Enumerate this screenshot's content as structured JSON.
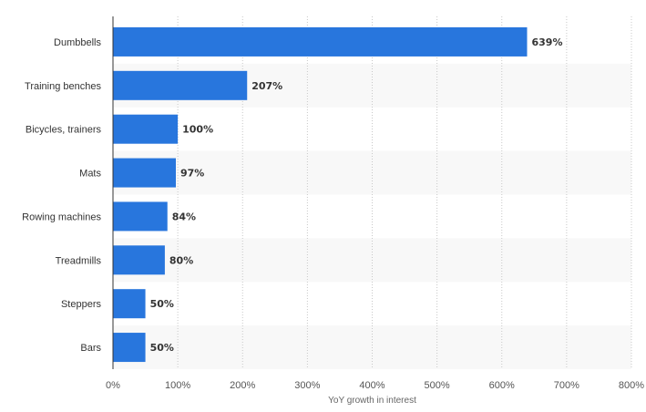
{
  "chart_data": {
    "type": "bar",
    "orientation": "horizontal",
    "categories": [
      "Dumbbells",
      "Training benches",
      "Bicycles, trainers",
      "Mats",
      "Rowing machines",
      "Treadmills",
      "Steppers",
      "Bars"
    ],
    "values": [
      639,
      207,
      100,
      97,
      84,
      80,
      50,
      50
    ],
    "value_labels": [
      "639%",
      "207%",
      "100%",
      "97%",
      "84%",
      "80%",
      "50%",
      "50%"
    ],
    "xlim": [
      0,
      800
    ],
    "x_ticks": [
      0,
      100,
      200,
      300,
      400,
      500,
      600,
      700,
      800
    ],
    "x_tick_labels": [
      "0%",
      "100%",
      "200%",
      "300%",
      "400%",
      "500%",
      "600%",
      "700%",
      "800%"
    ],
    "xlabel": "YoY growth in interest",
    "ylabel": "",
    "grid": "vertical dotted",
    "legend": "none",
    "bar_color": "#2876dd",
    "alt_row_color": "#f8f8f8"
  }
}
